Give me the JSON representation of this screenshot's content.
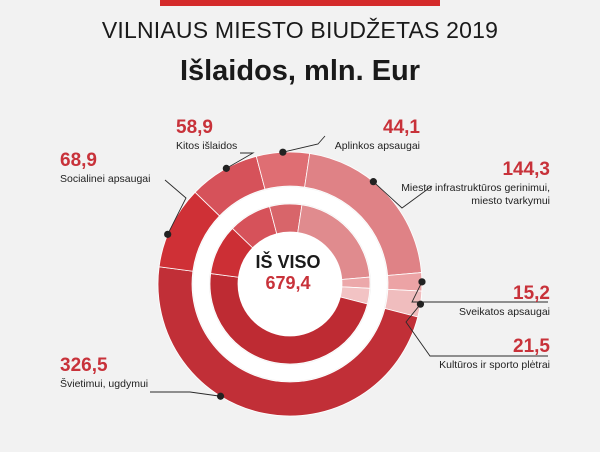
{
  "header": {
    "title": "VILNIAUS MIESTO BIUDŽETAS 2019",
    "subtitle": "Išlaidos, mln. Eur"
  },
  "center": {
    "label": "IŠ VISO",
    "total": "679,4"
  },
  "chart_data": {
    "type": "pie",
    "title": "VILNIAUS MIESTO BIUDŽETAS 2019",
    "subtitle": "Išlaidos, mln. Eur",
    "total": 679.4,
    "categories": [
      "Kitos išlaidos",
      "Aplinkos apsaugai",
      "Miesto infrastruktūros gerinimui, miesto tvarkymui",
      "Sveikatos apsaugai",
      "Kultūros ir sporto plėtrai",
      "Švietimui, ugdymui",
      "Socialinei apsaugai"
    ],
    "values": [
      58.9,
      44.1,
      144.3,
      15.2,
      21.5,
      326.5,
      68.9
    ],
    "colors": [
      "#d6525a",
      "#df6e73",
      "#df8286",
      "#eca3a5",
      "#f0bdbe",
      "#c12f37",
      "#cf3036"
    ],
    "inner_colors": [
      "#d6525a",
      "#d8656a",
      "#e08b8e",
      "#eca8aa",
      "#f2c3c4",
      "#be2b33",
      "#cc2f35"
    ]
  },
  "labels": [
    {
      "value": "58,9",
      "name": "Kitos išlaidos"
    },
    {
      "value": "44,1",
      "name": "Aplinkos apsaugai"
    },
    {
      "value": "144,3",
      "name": "Miesto infrastruktūros gerinimui, miesto tvarkymui"
    },
    {
      "value": "15,2",
      "name": "Sveikatos apsaugai"
    },
    {
      "value": "21,5",
      "name": "Kultūros ir sporto plėtrai"
    },
    {
      "value": "326,5",
      "name": "Švietimui, ugdymui"
    },
    {
      "value": "68,9",
      "name": "Socialinei apsaugai"
    }
  ]
}
